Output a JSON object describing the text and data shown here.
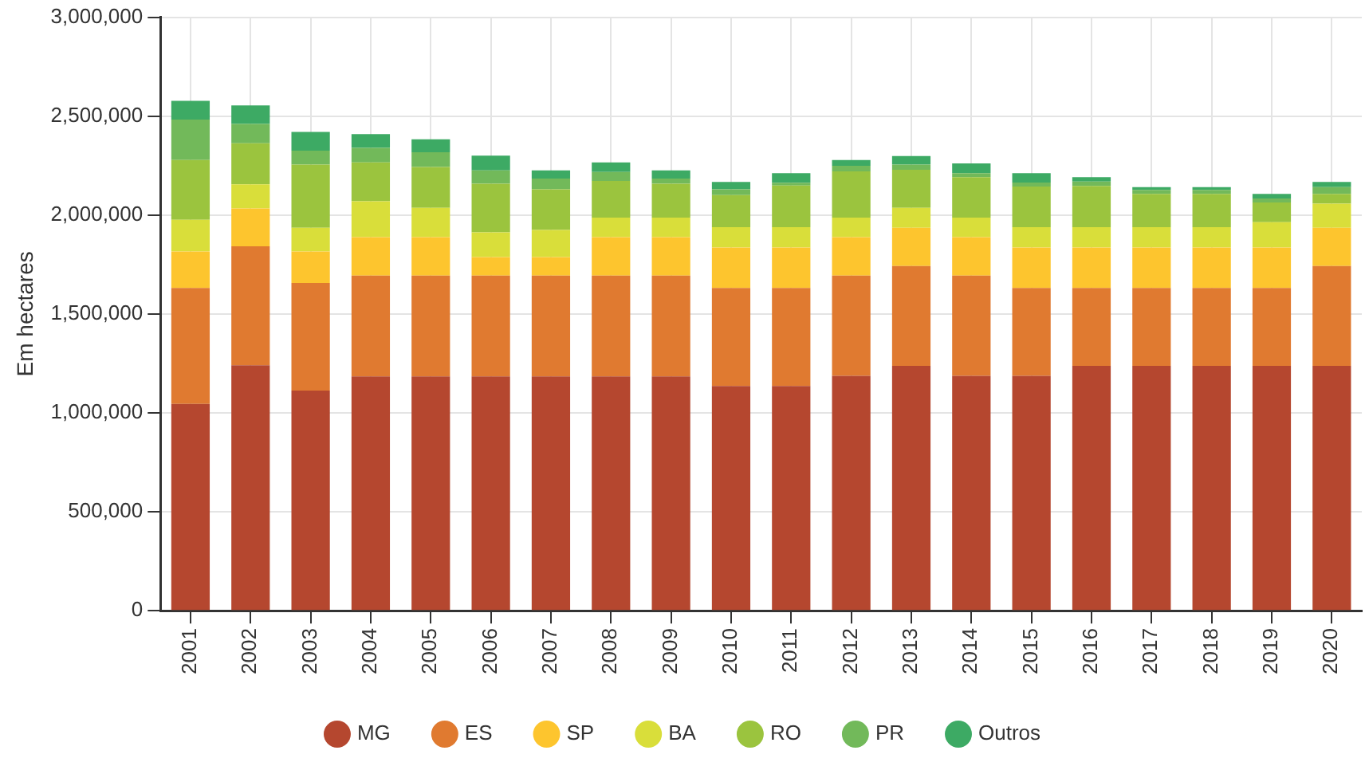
{
  "chart_data": {
    "type": "bar",
    "stacked": true,
    "ylabel": "Em hectares",
    "categories": [
      "2001",
      "2002",
      "2003",
      "2004",
      "2005",
      "2006",
      "2007",
      "2008",
      "2009",
      "2010",
      "2011",
      "2012",
      "2013",
      "2014",
      "2015",
      "2016",
      "2017",
      "2018",
      "2019",
      "2020"
    ],
    "series": [
      {
        "name": "MG",
        "color": "#b5472f",
        "values": [
          1045000,
          1241000,
          1113000,
          1184000,
          1184000,
          1184000,
          1184000,
          1184000,
          1184000,
          1136000,
          1136000,
          1187000,
          1238000,
          1187000,
          1187000,
          1238000,
          1238000,
          1238000,
          1238000,
          1238000
        ]
      },
      {
        "name": "ES",
        "color": "#e07a30",
        "values": [
          586000,
          601000,
          544000,
          510000,
          510000,
          510000,
          510000,
          510000,
          510000,
          495000,
          495000,
          507000,
          504000,
          507000,
          444000,
          393000,
          393000,
          393000,
          393000,
          504000
        ]
      },
      {
        "name": "SP",
        "color": "#fdc52e",
        "values": [
          185000,
          191000,
          159000,
          194000,
          194000,
          94000,
          94000,
          194000,
          194000,
          205000,
          205000,
          194000,
          194000,
          194000,
          205000,
          205000,
          205000,
          205000,
          205000,
          194000
        ]
      },
      {
        "name": "BA",
        "color": "#d9de3a",
        "values": [
          160000,
          122000,
          120000,
          182000,
          148000,
          125000,
          137000,
          99000,
          99000,
          103000,
          103000,
          99000,
          100000,
          99000,
          103000,
          103000,
          103000,
          103000,
          128000,
          122000
        ]
      },
      {
        "name": "RO",
        "color": "#9bc43e",
        "values": [
          302000,
          208000,
          319000,
          196000,
          207000,
          245000,
          205000,
          185000,
          171000,
          162000,
          210000,
          234000,
          193000,
          205000,
          205000,
          208000,
          168000,
          168000,
          100000,
          49000
        ]
      },
      {
        "name": "PR",
        "color": "#72b95a",
        "values": [
          205000,
          97000,
          71000,
          74000,
          74000,
          68000,
          54000,
          46000,
          26000,
          29000,
          14000,
          28000,
          26000,
          20000,
          20000,
          22000,
          20000,
          20000,
          20000,
          34000
        ]
      },
      {
        "name": "Outros",
        "color": "#3daa64",
        "values": [
          94000,
          94000,
          94000,
          69000,
          66000,
          74000,
          42000,
          48000,
          42000,
          37000,
          49000,
          29000,
          43000,
          49000,
          48000,
          23000,
          14000,
          14000,
          23000,
          26000
        ]
      }
    ],
    "ylim": [
      0,
      3000000
    ],
    "yticks": [
      {
        "value": 0,
        "label": "0"
      },
      {
        "value": 500000,
        "label": "500,000"
      },
      {
        "value": 1000000,
        "label": "1,000,000"
      },
      {
        "value": 1500000,
        "label": "1,500,000"
      },
      {
        "value": 2000000,
        "label": "2,000,000"
      },
      {
        "value": 2500000,
        "label": "2,500,000"
      },
      {
        "value": 3000000,
        "label": "3,000,000"
      }
    ],
    "grid": true,
    "legend": "bottom",
    "marker": "circle"
  }
}
